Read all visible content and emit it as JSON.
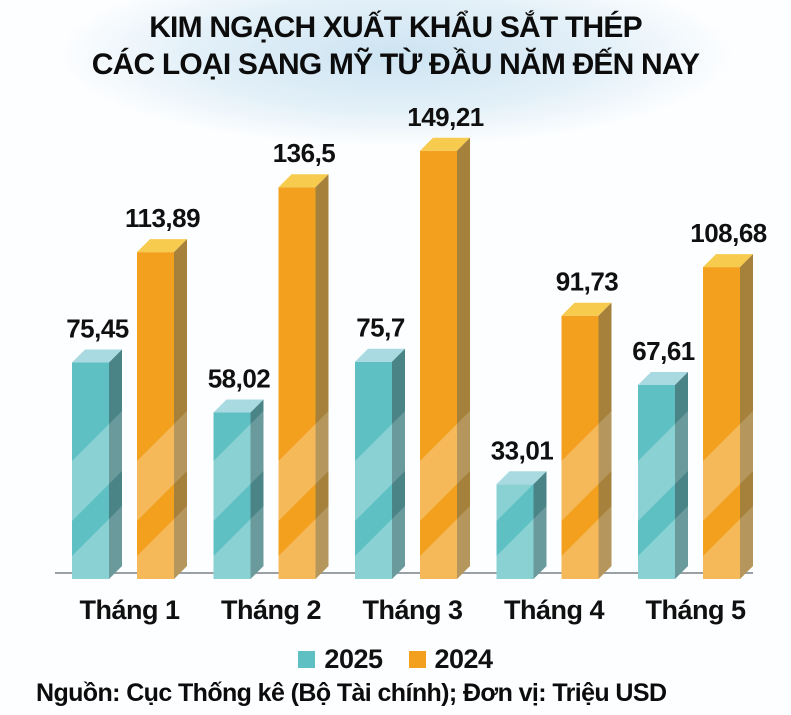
{
  "title": {
    "line1": "KIM NGẠCH XUẤT KHẨU SẮT THÉP",
    "line2": "CÁC LOẠI SANG MỸ TỪ ĐẦU NĂM ĐẾN NAY"
  },
  "source": "Nguồn: Cục Thống kê (Bộ Tài chính); Đơn vị: Triệu USD",
  "colors": {
    "background_tint": "#cde4f2",
    "axis": "#9aa1a6",
    "text": "#111111",
    "sheen": "#ffffff"
  },
  "chart_data": {
    "type": "bar",
    "title": "KIM NGẠCH XUẤT KHẨU SẮT THÉP CÁC LOẠI SANG MỸ TỪ ĐẦU NĂM ĐẾN NAY",
    "unit": "Triệu USD",
    "categories": [
      "Tháng 1",
      "Tháng 2",
      "Tháng 3",
      "Tháng 4",
      "Tháng 5"
    ],
    "series": [
      {
        "name": "2025",
        "color": "#5FC0C4",
        "top_color": "#A9DAE2",
        "side_color": "#4A8487",
        "values": [
          75.45,
          58.02,
          75.7,
          33.01,
          67.61
        ],
        "labels": [
          "75,45",
          "58,02",
          "75,7",
          "33,01",
          "67,61"
        ]
      },
      {
        "name": "2024",
        "color": "#F2A01E",
        "top_color": "#F7CB4E",
        "side_color": "#A5813B",
        "values": [
          113.89,
          136.5,
          149.21,
          91.73,
          108.68
        ],
        "labels": [
          "113,89",
          "136,5",
          "149,21",
          "91,73",
          "108,68"
        ]
      }
    ],
    "legend_position": "bottom",
    "grid": false,
    "ylim": [
      0,
      160
    ],
    "value_labels_shown": true
  }
}
